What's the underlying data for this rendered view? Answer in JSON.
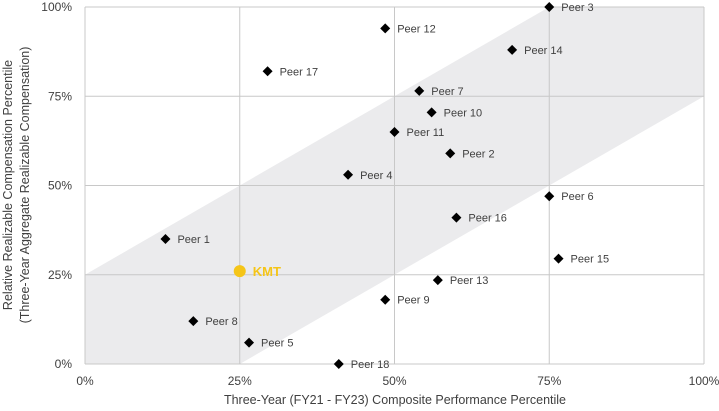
{
  "chart_data": {
    "type": "scatter",
    "xlabel": "Three-Year (FY21 - FY23) Composite Performance Percentile",
    "ylabel_line1": "Relative Realizable Compensation Percentile",
    "ylabel_line2": "(Three-Year Aggregate Realizable Compensation)",
    "xlim": [
      0,
      100
    ],
    "ylim": [
      0,
      100
    ],
    "grid": true,
    "xticks": [
      "0%",
      "25%",
      "50%",
      "75%",
      "100%"
    ],
    "yticks": [
      "0%",
      "25%",
      "50%",
      "75%",
      "100%"
    ],
    "tick_values": [
      0,
      25,
      50,
      75,
      100
    ],
    "alignment_band": {
      "description_points": [
        [
          0,
          0
        ],
        [
          0,
          25
        ],
        [
          75,
          100
        ],
        [
          100,
          100
        ],
        [
          100,
          75
        ],
        [
          25,
          0
        ]
      ],
      "color": "#ebebed"
    },
    "points": [
      {
        "label": "Peer 1",
        "x": 13,
        "y": 35
      },
      {
        "label": "Peer 2",
        "x": 59,
        "y": 59
      },
      {
        "label": "Peer 3",
        "x": 75,
        "y": 100
      },
      {
        "label": "Peer 4",
        "x": 42.5,
        "y": 53
      },
      {
        "label": "Peer 5",
        "x": 26.5,
        "y": 6
      },
      {
        "label": "Peer 6",
        "x": 75,
        "y": 47
      },
      {
        "label": "Peer 7",
        "x": 54,
        "y": 76.5
      },
      {
        "label": "Peer 8",
        "x": 17.5,
        "y": 12
      },
      {
        "label": "Peer 9",
        "x": 48.5,
        "y": 18
      },
      {
        "label": "Peer 10",
        "x": 56,
        "y": 70.5
      },
      {
        "label": "Peer 11",
        "x": 50,
        "y": 65
      },
      {
        "label": "Peer 12",
        "x": 48.5,
        "y": 94
      },
      {
        "label": "Peer 13",
        "x": 57,
        "y": 23.5
      },
      {
        "label": "Peer 14",
        "x": 69,
        "y": 88
      },
      {
        "label": "Peer 15",
        "x": 76.5,
        "y": 29.5
      },
      {
        "label": "Peer 16",
        "x": 60,
        "y": 41
      },
      {
        "label": "Peer 17",
        "x": 29.5,
        "y": 82
      },
      {
        "label": "Peer 18",
        "x": 41,
        "y": 0
      }
    ],
    "highlight": {
      "label": "KMT",
      "x": 25,
      "y": 26,
      "color": "#f5c518"
    },
    "marker_color": "#000000"
  }
}
